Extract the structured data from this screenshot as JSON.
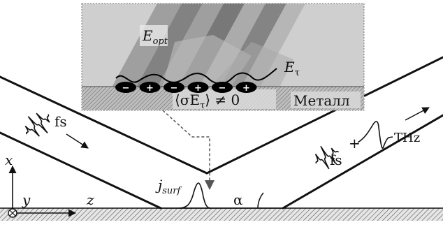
{
  "labels": {
    "e_opt": "E",
    "e_opt_sub": "opt",
    "e_tau": "E",
    "e_tau_sub": "τ",
    "metal": "Металл",
    "average": "⟨σE",
    "average_sub": "τ",
    "average_tail": "⟩ ≠ 0",
    "fs_in": "fs",
    "fs_out": "fs",
    "plus_sign": "+",
    "thz": "THz",
    "j": "j",
    "j_sub": "surf",
    "alpha": "α",
    "axis_x": "x",
    "axis_y": "y",
    "axis_z": "z"
  },
  "charges": [
    "−",
    "+",
    "−",
    "+",
    "−",
    "+"
  ],
  "colors": {
    "inset_bg": "#d0d0d0",
    "inset_border": "#777777",
    "metal_hatch": "#555555",
    "beam_line": "#111111",
    "stripe_dark": "#6f6f6f",
    "stripe_light": "#9a9a9a"
  }
}
